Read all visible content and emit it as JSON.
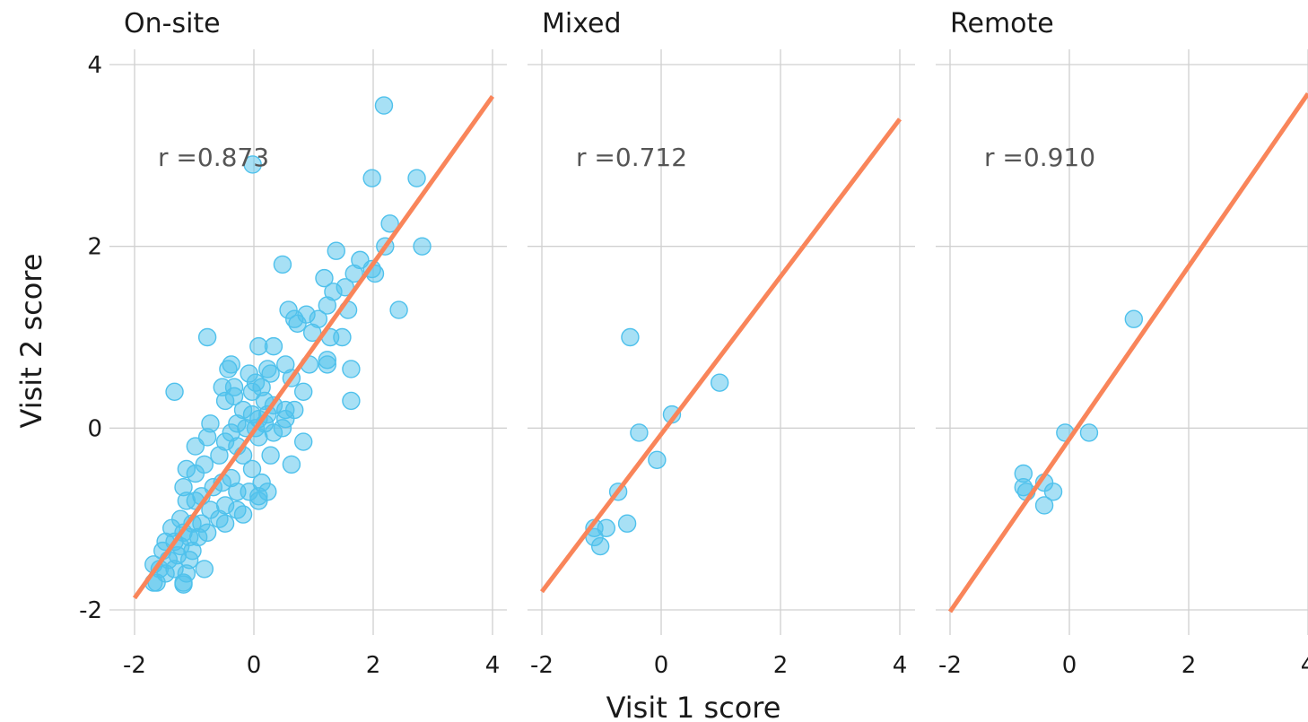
{
  "chart_data": {
    "type": "scatter",
    "xlabel": "Visit 1 score",
    "ylabel": "Visit 2 score",
    "xlim": [
      -2,
      4
    ],
    "ylim": [
      -2,
      4
    ],
    "x_ticks": [
      "-2",
      "0",
      "2",
      "4"
    ],
    "y_ticks": [
      "-2",
      "0",
      "2",
      "4"
    ],
    "grid": true,
    "colors": {
      "points": "#4FC1EC",
      "fit_line": "#F9855A",
      "grid": "#d0d0d0"
    },
    "panels": [
      {
        "name": "On-site",
        "r_label": "r =0.873",
        "fit_line": {
          "x": [
            -2,
            4
          ],
          "y": [
            -1.87,
            3.65
          ]
        },
        "points": [
          [
            -0.02,
            2.9
          ],
          [
            2.18,
            3.55
          ],
          [
            1.98,
            2.75
          ],
          [
            2.73,
            2.75
          ],
          [
            2.28,
            2.25
          ],
          [
            2.2,
            2.0
          ],
          [
            2.82,
            2.0
          ],
          [
            1.38,
            1.95
          ],
          [
            0.48,
            1.8
          ],
          [
            1.78,
            1.85
          ],
          [
            1.98,
            1.75
          ],
          [
            2.03,
            1.7
          ],
          [
            1.68,
            1.7
          ],
          [
            1.53,
            1.55
          ],
          [
            1.18,
            1.65
          ],
          [
            1.33,
            1.5
          ],
          [
            2.43,
            1.3
          ],
          [
            1.58,
            1.3
          ],
          [
            1.23,
            1.35
          ],
          [
            0.88,
            1.25
          ],
          [
            0.58,
            1.3
          ],
          [
            0.68,
            1.2
          ],
          [
            0.73,
            1.15
          ],
          [
            1.08,
            1.2
          ],
          [
            0.98,
            1.05
          ],
          [
            1.28,
            1.0
          ],
          [
            1.48,
            1.0
          ],
          [
            -0.78,
            1.0
          ],
          [
            0.08,
            0.9
          ],
          [
            0.33,
            0.9
          ],
          [
            1.23,
            0.75
          ],
          [
            1.23,
            0.7
          ],
          [
            0.93,
            0.7
          ],
          [
            0.53,
            0.7
          ],
          [
            -0.38,
            0.7
          ],
          [
            -0.43,
            0.65
          ],
          [
            1.63,
            0.65
          ],
          [
            0.23,
            0.65
          ],
          [
            -0.08,
            0.6
          ],
          [
            0.28,
            0.6
          ],
          [
            0.63,
            0.55
          ],
          [
            -0.33,
            0.45
          ],
          [
            -0.53,
            0.45
          ],
          [
            0.03,
            0.5
          ],
          [
            0.13,
            0.45
          ],
          [
            -1.33,
            0.4
          ],
          [
            0.83,
            0.4
          ],
          [
            -0.33,
            0.35
          ],
          [
            -0.03,
            0.4
          ],
          [
            -0.48,
            0.3
          ],
          [
            1.63,
            0.3
          ],
          [
            0.18,
            0.3
          ],
          [
            0.33,
            0.25
          ],
          [
            0.53,
            0.2
          ],
          [
            0.68,
            0.2
          ],
          [
            -0.18,
            0.2
          ],
          [
            -0.03,
            0.15
          ],
          [
            0.08,
            0.1
          ],
          [
            0.23,
            0.15
          ],
          [
            -0.28,
            0.05
          ],
          [
            -0.73,
            0.05
          ],
          [
            0.53,
            0.1
          ],
          [
            0.48,
            0.0
          ],
          [
            -0.13,
            0.0
          ],
          [
            0.03,
            0.0
          ],
          [
            0.18,
            0.05
          ],
          [
            -0.38,
            -0.05
          ],
          [
            0.33,
            -0.05
          ],
          [
            0.83,
            -0.15
          ],
          [
            -0.98,
            -0.2
          ],
          [
            -0.48,
            -0.15
          ],
          [
            0.08,
            -0.1
          ],
          [
            -0.78,
            -0.1
          ],
          [
            -0.28,
            -0.2
          ],
          [
            0.28,
            -0.3
          ],
          [
            -0.58,
            -0.3
          ],
          [
            -0.18,
            -0.3
          ],
          [
            0.63,
            -0.4
          ],
          [
            -0.03,
            -0.45
          ],
          [
            -1.13,
            -0.45
          ],
          [
            -0.98,
            -0.5
          ],
          [
            -0.83,
            -0.4
          ],
          [
            -0.38,
            -0.55
          ],
          [
            -0.53,
            -0.6
          ],
          [
            -1.18,
            -0.65
          ],
          [
            0.13,
            -0.6
          ],
          [
            -0.68,
            -0.65
          ],
          [
            -0.28,
            -0.7
          ],
          [
            0.23,
            -0.7
          ],
          [
            -0.08,
            -0.7
          ],
          [
            -0.88,
            -0.75
          ],
          [
            0.08,
            -0.75
          ],
          [
            -1.13,
            -0.8
          ],
          [
            -0.48,
            -0.85
          ],
          [
            -0.98,
            -0.8
          ],
          [
            0.08,
            -0.8
          ],
          [
            -0.73,
            -0.9
          ],
          [
            -0.28,
            -0.9
          ],
          [
            -0.18,
            -0.95
          ],
          [
            -0.58,
            -1.0
          ],
          [
            -1.23,
            -1.0
          ],
          [
            -0.88,
            -1.05
          ],
          [
            -0.48,
            -1.05
          ],
          [
            -1.03,
            -1.05
          ],
          [
            -1.38,
            -1.1
          ],
          [
            -0.78,
            -1.15
          ],
          [
            -1.18,
            -1.15
          ],
          [
            -0.93,
            -1.2
          ],
          [
            -1.08,
            -1.2
          ],
          [
            -1.33,
            -1.25
          ],
          [
            -1.48,
            -1.25
          ],
          [
            -1.23,
            -1.3
          ],
          [
            -1.03,
            -1.35
          ],
          [
            -1.53,
            -1.35
          ],
          [
            -1.28,
            -1.4
          ],
          [
            -1.08,
            -1.45
          ],
          [
            -1.43,
            -1.45
          ],
          [
            -1.68,
            -1.5
          ],
          [
            -1.58,
            -1.55
          ],
          [
            -1.33,
            -1.55
          ],
          [
            -0.83,
            -1.55
          ],
          [
            -1.13,
            -1.6
          ],
          [
            -1.48,
            -1.6
          ],
          [
            -1.68,
            -1.7
          ],
          [
            -1.63,
            -1.7
          ],
          [
            -1.18,
            -1.7
          ],
          [
            -1.18,
            -1.72
          ]
        ]
      },
      {
        "name": "Mixed",
        "r_label": "r =0.712",
        "fit_line": {
          "x": [
            -2,
            4
          ],
          "y": [
            -1.8,
            3.4
          ]
        },
        "points": [
          [
            -0.52,
            1.0
          ],
          [
            0.98,
            0.5
          ],
          [
            0.18,
            0.15
          ],
          [
            -0.37,
            -0.05
          ],
          [
            -0.07,
            -0.35
          ],
          [
            -0.72,
            -0.7
          ],
          [
            -0.57,
            -1.05
          ],
          [
            -0.92,
            -1.1
          ],
          [
            -1.12,
            -1.1
          ],
          [
            -1.12,
            -1.2
          ],
          [
            -1.02,
            -1.3
          ]
        ]
      },
      {
        "name": "Remote",
        "r_label": "r =0.910",
        "fit_line": {
          "x": [
            -2,
            4
          ],
          "y": [
            -2.02,
            3.68
          ]
        },
        "points": [
          [
            1.08,
            1.2
          ],
          [
            -0.07,
            -0.05
          ],
          [
            0.33,
            -0.05
          ],
          [
            -0.77,
            -0.5
          ],
          [
            -0.42,
            -0.6
          ],
          [
            -0.77,
            -0.65
          ],
          [
            -0.72,
            -0.7
          ],
          [
            -0.27,
            -0.7
          ],
          [
            -0.42,
            -0.85
          ]
        ]
      }
    ]
  }
}
